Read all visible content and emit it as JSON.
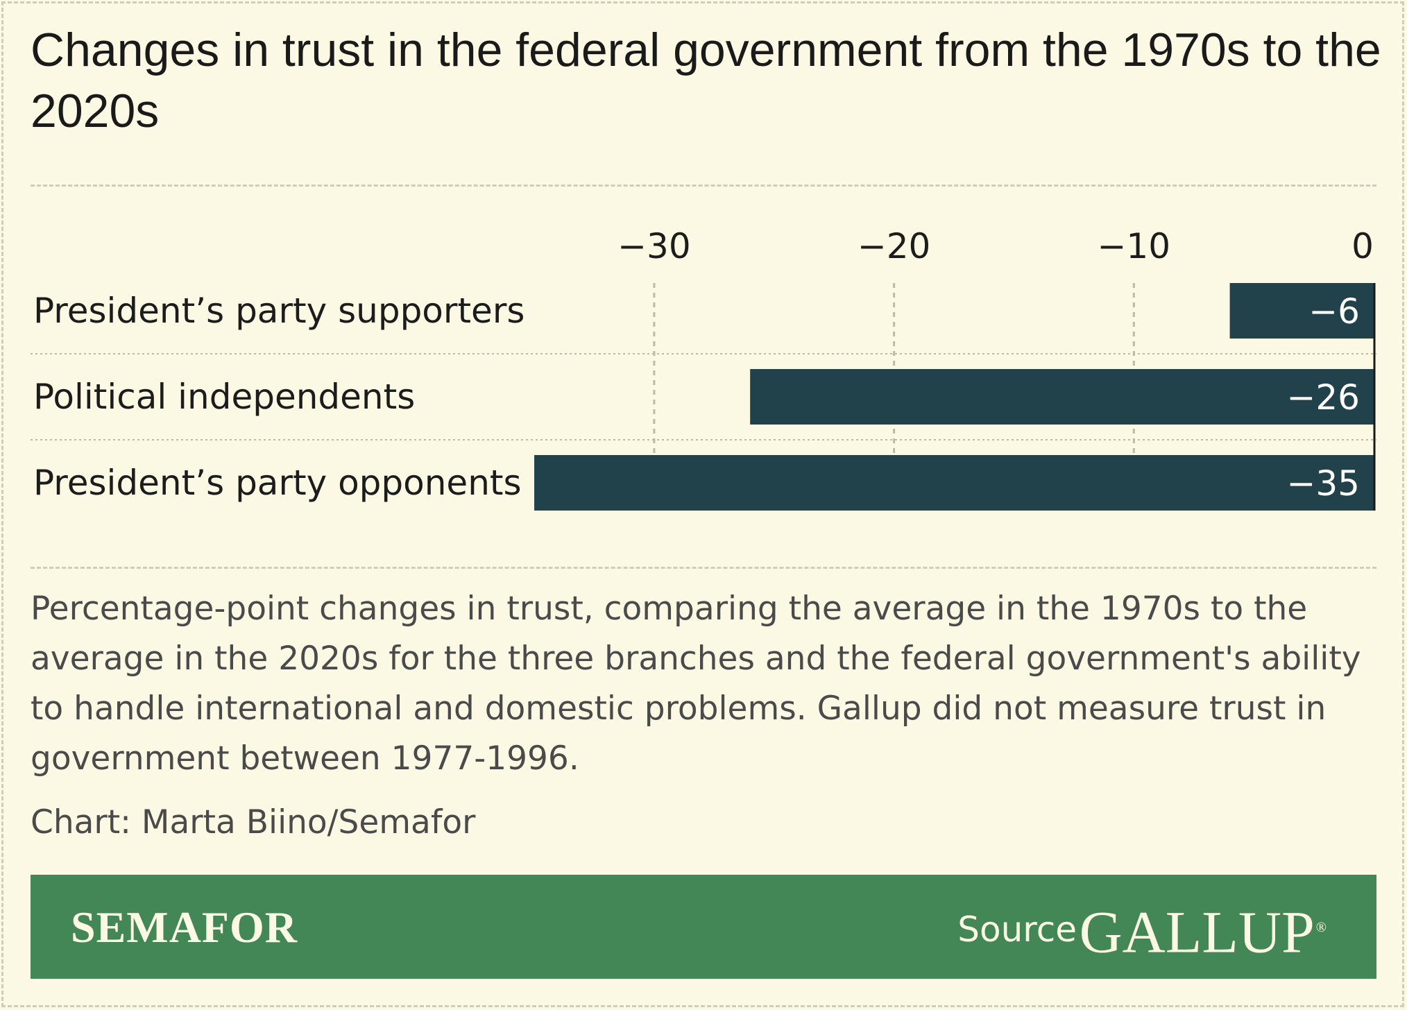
{
  "title": "Changes in trust in the federal government from the 1970s to the 2020s",
  "note": "Percentage-point changes in trust, comparing the average in the 1970s to the average in the 2020s for the three branches and the federal government's ability to handle international and domestic problems. Gallup did not measure trust in government between 1977-1996.",
  "credit": "Chart: Marta Biino/Semafor",
  "footer": {
    "brand": "SEMAFOR",
    "source_label": "Source",
    "source_name": "GALLUP",
    "registered_mark": "®"
  },
  "colors": {
    "background": "#fbf8e4",
    "bar": "#21414b",
    "footer": "#428755",
    "gridline": "#bdb9a4"
  },
  "chart_data": {
    "type": "bar",
    "orientation": "horizontal",
    "title": "",
    "xlabel": "",
    "ylabel": "",
    "categories": [
      "President’s party supporters",
      "Political independents",
      "President’s party opponents"
    ],
    "values": [
      -6,
      -26,
      -35
    ],
    "value_labels": [
      "−6",
      "−26",
      "−35"
    ],
    "xticks": [
      -30,
      -20,
      -10,
      0
    ],
    "xtick_labels": [
      "−30",
      "−20",
      "−10",
      "0"
    ],
    "xlim": [
      -35,
      0
    ],
    "grid": true
  }
}
